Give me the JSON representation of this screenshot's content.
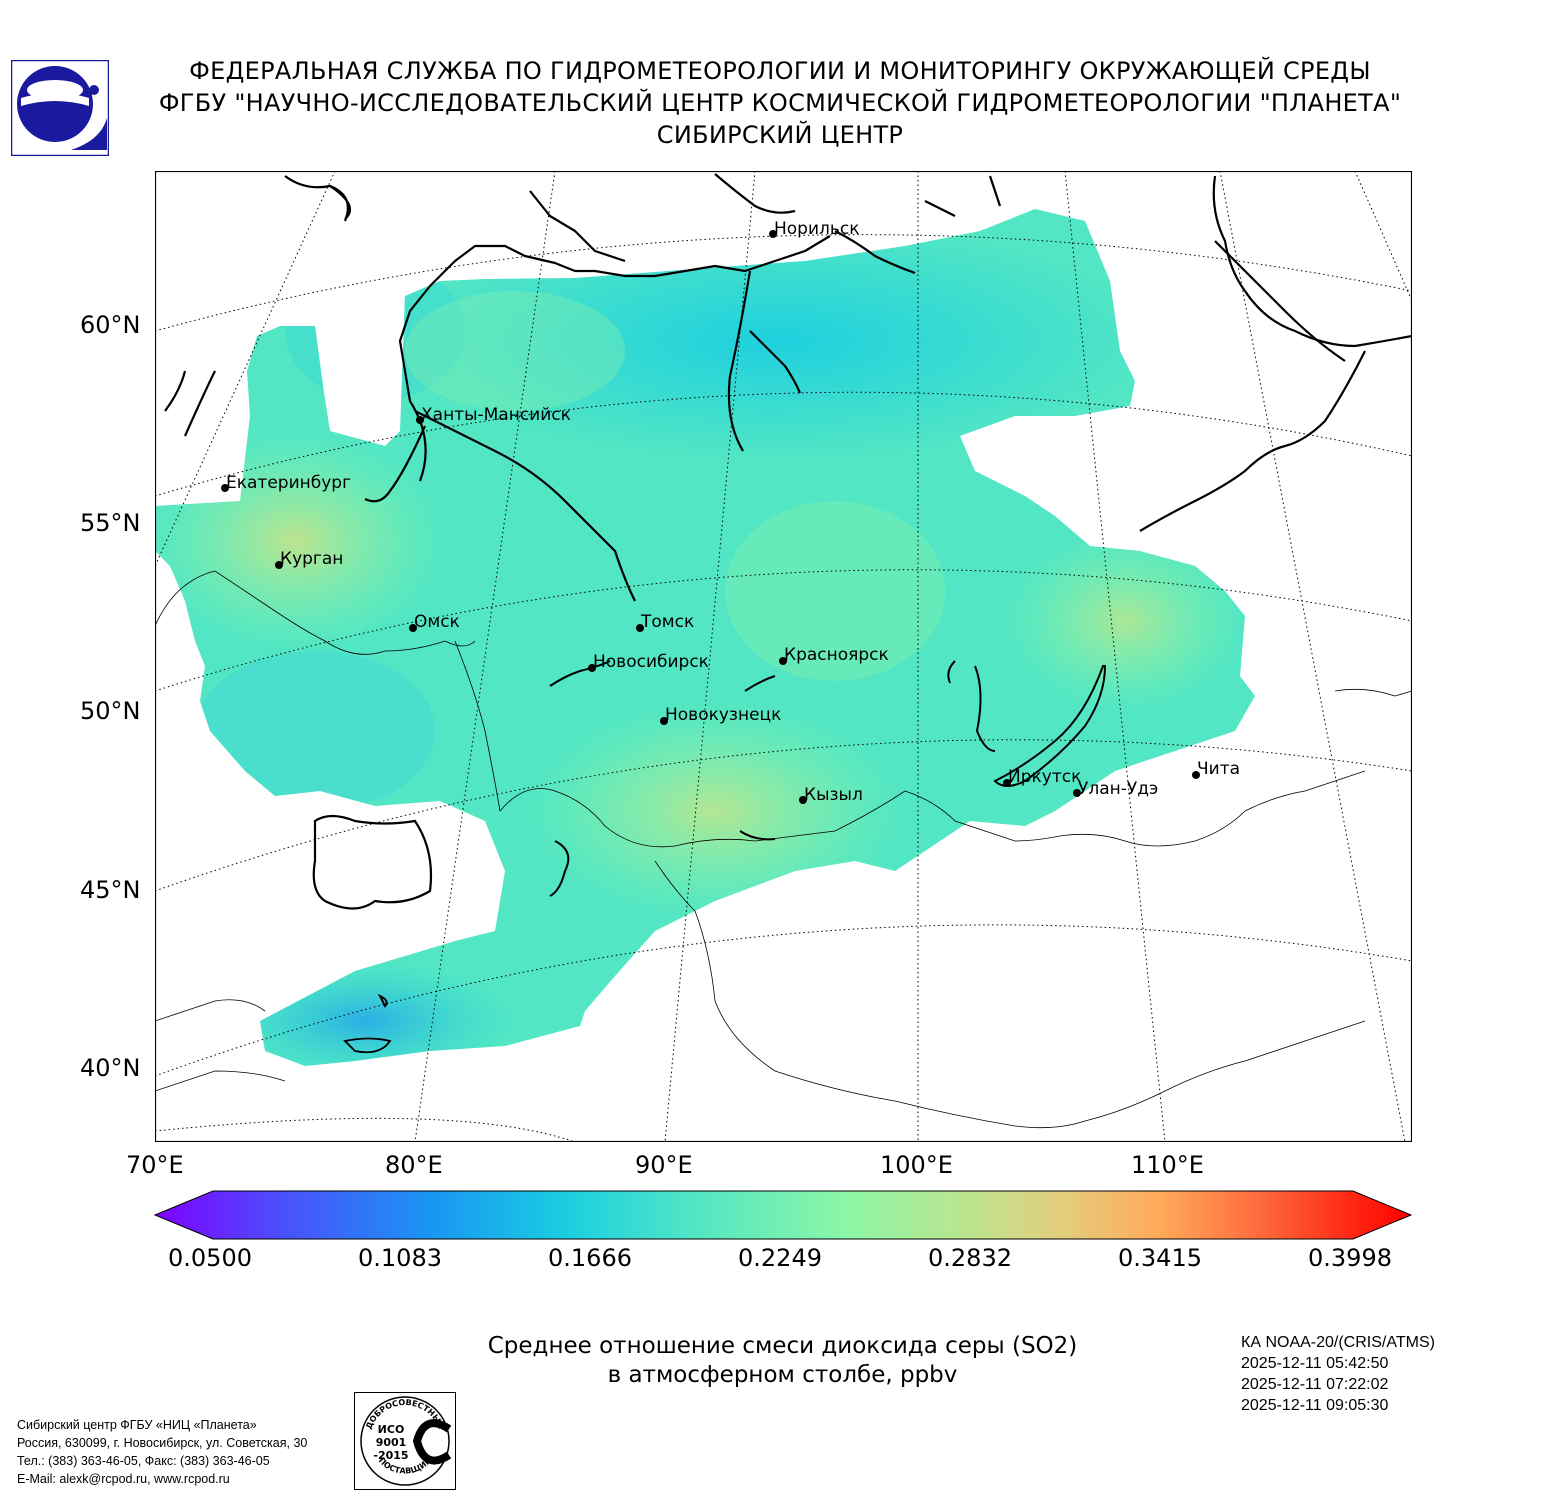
{
  "header": {
    "line1": "ФЕДЕРАЛЬНАЯ СЛУЖБА ПО ГИДРОМЕТЕОРОЛОГИИ И МОНИТОРИНГУ ОКРУЖАЮЩЕЙ СРЕДЫ",
    "line2": "ФГБУ \"НАУЧНО-ИССЛЕДОВАТЕЛЬСКИЙ ЦЕНТР КОСМИЧЕСКОЙ ГИДРОМЕТЕОРОЛОГИИ \"ПЛАНЕТА\"",
    "line3": "СИБИРСКИЙ ЦЕНТР"
  },
  "map": {
    "lat_labels": [
      "60°N",
      "55°N",
      "50°N",
      "45°N",
      "40°N"
    ],
    "lon_labels": [
      "70°E",
      "80°E",
      "90°E",
      "100°E",
      "110°E"
    ],
    "cities": [
      {
        "name": "Норильск"
      },
      {
        "name": "Ханты-Мансийск"
      },
      {
        "name": "Екатеринбург"
      },
      {
        "name": "Курган"
      },
      {
        "name": "Омск"
      },
      {
        "name": "Томск"
      },
      {
        "name": "Новосибирск"
      },
      {
        "name": "Красноярск"
      },
      {
        "name": "Новокузнецк"
      },
      {
        "name": "Иркутск"
      },
      {
        "name": "Кызыл"
      },
      {
        "name": "Улан-Удэ"
      },
      {
        "name": "Чита"
      }
    ],
    "colors": {
      "field_main": "#52e6c4",
      "field_high": "#b9e690",
      "field_low": "#1ccfe0",
      "coast": "#000000"
    }
  },
  "colorbar": {
    "ticks": [
      "0.0500",
      "0.1083",
      "0.1666",
      "0.2249",
      "0.2832",
      "0.3415",
      "0.3998"
    ],
    "colors": [
      "#7f00ff",
      "#4b4ffb",
      "#1996f3",
      "#1ccfe0",
      "#52e6c4",
      "#8cf6a6",
      "#b9e690",
      "#e1cf7d",
      "#ffaa5a",
      "#ff6a3c",
      "#ff2a15",
      "#ff0000"
    ]
  },
  "caption": {
    "line1": "Среднее отношение смеси диоксида серы (SO2)",
    "line2": "в атмосферном столбе, ppbv"
  },
  "satellite": {
    "name": "КА NOAA-20/(CRIS/ATMS)",
    "times": [
      "2025-12-11 05:42:50",
      "2025-12-11 07:22:02",
      "2025-12-11 09:05:30"
    ]
  },
  "footer": {
    "line1": "Сибирский центр ФГБУ «НИЦ «Планета»",
    "line2": "Россия, 630099, г. Новосибирск, ул. Советская, 30",
    "line3": "Тел.: (383) 363-46-05, Факс: (383) 363-46-05",
    "line4": "E-Mail: alexk@rcpod.ru, www.rcpod.ru"
  },
  "cert_badge": {
    "arc_top": "ДОБРОСОВЕСТНЫЙ",
    "center": [
      "ИСО",
      "9001",
      "-2015"
    ],
    "arc_bottom": "ПОСТАВЩИК"
  }
}
